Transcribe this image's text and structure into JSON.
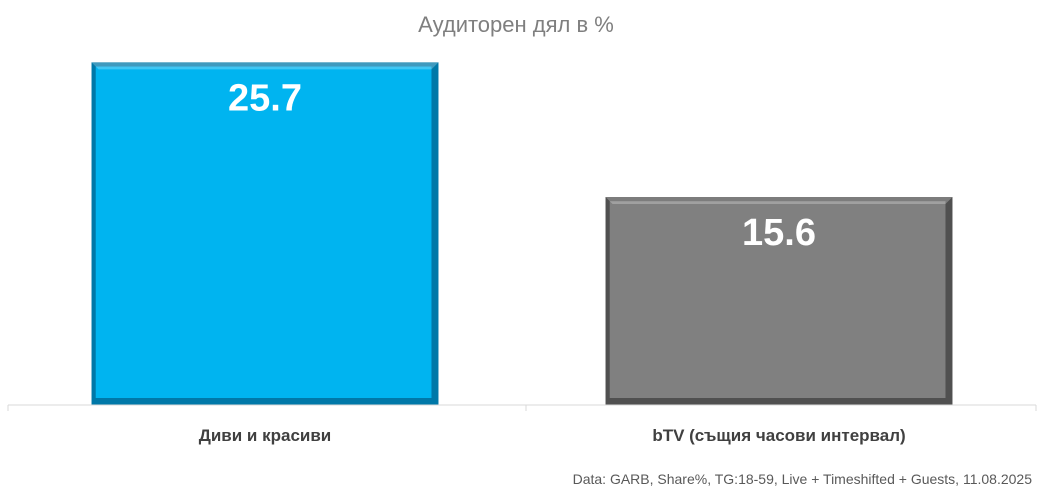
{
  "chart_data": {
    "type": "bar",
    "title": "Аудиторен дял в %",
    "categories": [
      "Диви и красиви",
      "bTV (същия часови интервал)"
    ],
    "values": [
      25.7,
      15.6
    ],
    "ylim": [
      0,
      30
    ],
    "grid": false,
    "legend": "none",
    "colors": [
      "#00b4f0",
      "#808080"
    ],
    "edge_colors": [
      "#0078a8",
      "#505050"
    ],
    "source": "Data: GARB, Share%, TG:18-59, Live + Timeshifted + Guests, 11.08.2025"
  }
}
